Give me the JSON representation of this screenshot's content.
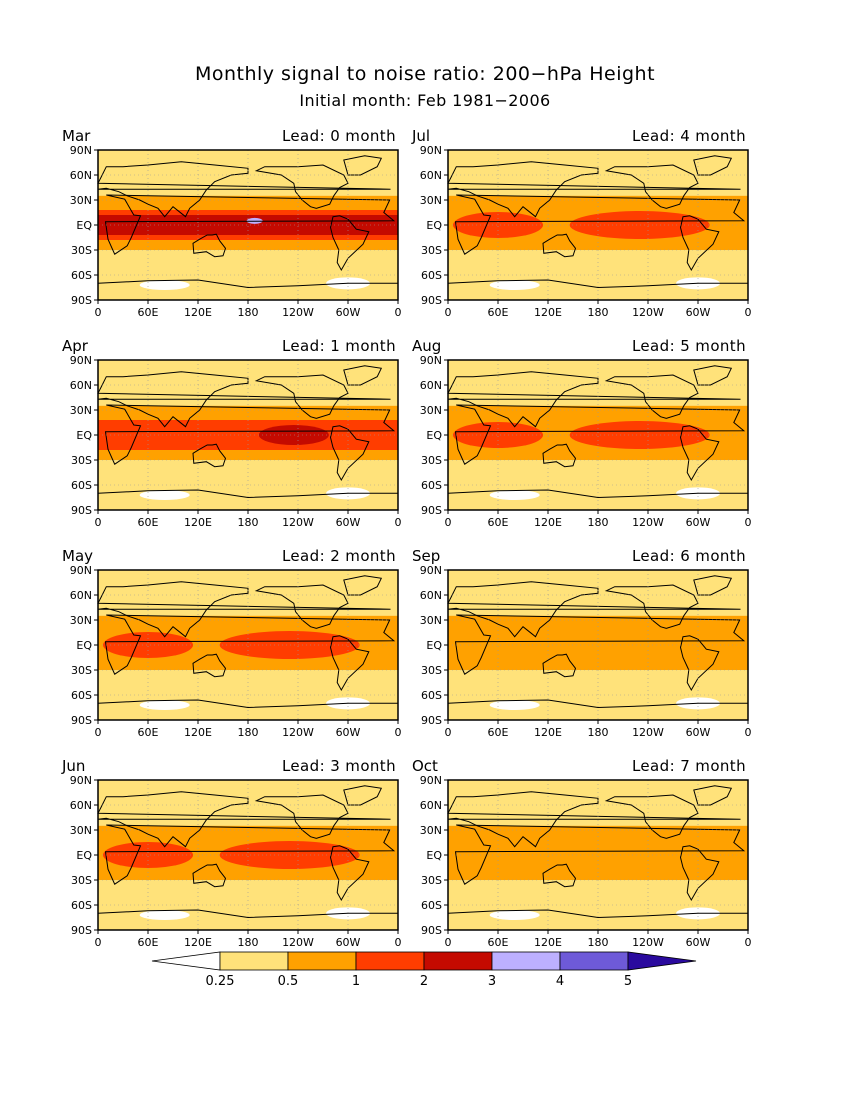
{
  "title": "Monthly signal to noise ratio: 200−hPa Height",
  "subtitle": "Initial month: Feb 1981−2006",
  "panels": [
    {
      "month": "Mar",
      "lead": "Lead: 0 month",
      "level": 4
    },
    {
      "month": "Jul",
      "lead": "Lead: 4 month",
      "level": 2
    },
    {
      "month": "Apr",
      "lead": "Lead: 1 month",
      "level": 3
    },
    {
      "month": "Aug",
      "lead": "Lead: 5 month",
      "level": 2
    },
    {
      "month": "May",
      "lead": "Lead: 2 month",
      "level": 2
    },
    {
      "month": "Sep",
      "lead": "Lead: 6 month",
      "level": 1
    },
    {
      "month": "Jun",
      "lead": "Lead: 3 month",
      "level": 2
    },
    {
      "month": "Oct",
      "lead": "Lead: 7 month",
      "level": 1
    }
  ],
  "y_ticks": [
    "90N",
    "60N",
    "30N",
    "EQ",
    "30S",
    "60S",
    "90S"
  ],
  "x_ticks": [
    "0",
    "60E",
    "120E",
    "180",
    "120W",
    "60W",
    "0"
  ],
  "colorbar": {
    "labels": [
      "0.25",
      "0.5",
      "1",
      "2",
      "3",
      "4",
      "5"
    ],
    "colors": [
      "#ffffff",
      "#ffe27a",
      "#ffa100",
      "#ff3d00",
      "#c40a00",
      "#bdb0ff",
      "#6e5ad8",
      "#2a0a9e"
    ]
  }
}
